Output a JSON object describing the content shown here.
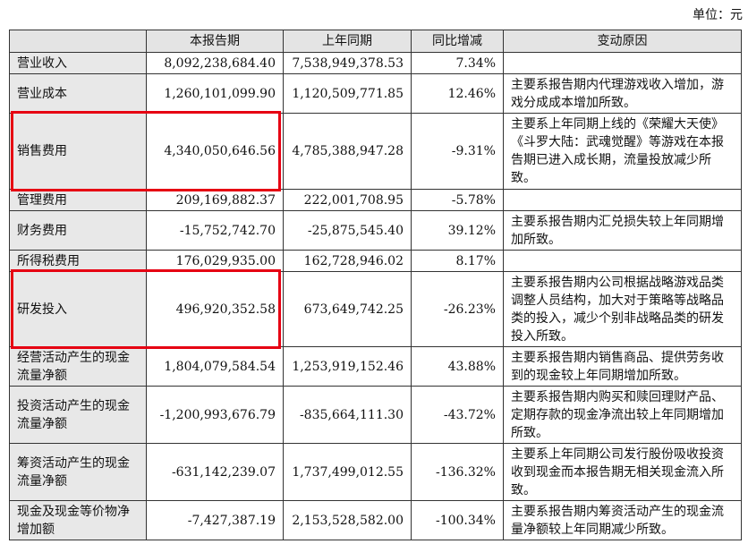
{
  "unit_label": "单位：元",
  "columns": [
    "",
    "本报告期",
    "上年同期",
    "同比增减",
    "变动原因"
  ],
  "rows": [
    {
      "item": "营业收入",
      "current": "8,092,238,684.40",
      "prior": "7,538,949,378.53",
      "change": "7.34%",
      "reason": "",
      "highlight": false
    },
    {
      "item": "营业成本",
      "current": "1,260,101,099.90",
      "prior": "1,120,509,771.85",
      "change": "12.46%",
      "reason": "主要系报告期内代理游戏收入增加，游戏分成成本增加所致。",
      "highlight": false
    },
    {
      "item": "销售费用",
      "current": "4,340,050,646.56",
      "prior": "4,785,388,947.28",
      "change": "-9.31%",
      "reason": "主要系上年同期上线的《荣耀大天使》《斗罗大陆：武魂觉醒》等游戏在本报告期已进入成长期，流量投放减少所致。",
      "highlight": true
    },
    {
      "item": "管理费用",
      "current": "209,169,882.37",
      "prior": "222,001,708.95",
      "change": "-5.78%",
      "reason": "",
      "highlight": false
    },
    {
      "item": "财务费用",
      "current": "-15,752,742.70",
      "prior": "-25,875,545.40",
      "change": "39.12%",
      "reason": "主要系报告期内汇兑损失较上年同期增加所致。",
      "highlight": false
    },
    {
      "item": "所得税费用",
      "current": "176,029,935.00",
      "prior": "162,728,946.02",
      "change": "8.17%",
      "reason": "",
      "highlight": false
    },
    {
      "item": "研发投入",
      "current": "496,920,352.58",
      "prior": "673,649,742.25",
      "change": "-26.23%",
      "reason": "主要系报告期内公司根据战略游戏品类调整人员结构，加大对于策略等战略品类的投入，减少个别非战略品类的研发投入所致。",
      "highlight": true
    },
    {
      "item": "经营活动产生的现金流量净额",
      "current": "1,804,079,584.54",
      "prior": "1,253,919,152.46",
      "change": "43.88%",
      "reason": "主要系报告期内销售商品、提供劳务收到的现金较上年同期增加所致。",
      "highlight": false
    },
    {
      "item": "投资活动产生的现金流量净额",
      "current": "-1,200,993,676.79",
      "prior": "-835,664,111.30",
      "change": "-43.72%",
      "reason": "主要系报告期内购买和赎回理财产品、定期存款的现金净流出较上年同期增加所致。",
      "highlight": false
    },
    {
      "item": "筹资活动产生的现金流量净额",
      "current": "-631,142,239.07",
      "prior": "1,737,499,012.55",
      "change": "-136.32%",
      "reason": "主要系上年同期公司发行股份吸收投资收到现金而本报告期无相关现金流入所致。",
      "highlight": false
    },
    {
      "item": "现金及现金等价物净增加额",
      "current": "-7,427,387.19",
      "prior": "2,153,528,582.00",
      "change": "-100.34%",
      "reason": "主要系报告期内筹资活动产生的现金流量净额较上年同期减少所致。",
      "highlight": false
    }
  ],
  "highlight_color": "#e60012"
}
